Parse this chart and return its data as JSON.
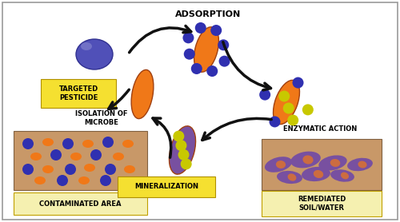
{
  "bg_color": "#ffffff",
  "border_color": "#999999",
  "title_text": "ADSORPTION",
  "label_targeted_pesticide": "TARGETED\nPESTICIDE",
  "label_isolation": "ISOLATION OF\nMICROBE",
  "label_contaminated": "CONTAMINATED AREA",
  "label_mineralization": "MINERALIZATION",
  "label_enzymatic": "ENZYMATIC ACTION",
  "label_remediated": "REMEDIATED\nSOIL/WATER",
  "yellow_box_color": "#f5e030",
  "yellow_label_color": "#f5f0b0",
  "contaminated_bg": "#c89868",
  "remediated_bg": "#c89868",
  "pesticide_color": "#5050b8",
  "bacteria_orange": "#f07818",
  "bacteria_purple": "#7850a0",
  "dot_blue": "#3030b0",
  "dot_yellow": "#c8c800",
  "arrow_color": "#111111",
  "font_size_labels": 6.5,
  "font_size_title": 8.0,
  "font_size_box": 6.0
}
